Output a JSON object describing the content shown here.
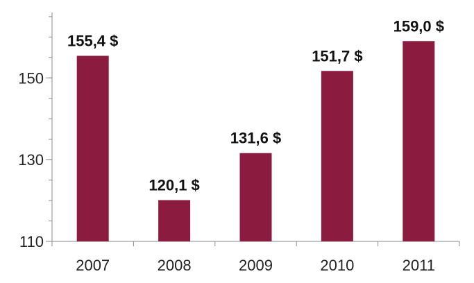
{
  "chart_data": {
    "type": "bar",
    "title": "",
    "xlabel": "",
    "ylabel": "",
    "categories": [
      "2007",
      "2008",
      "2009",
      "2010",
      "2011"
    ],
    "values": [
      155.4,
      120.1,
      131.6,
      151.7,
      159.0
    ],
    "data_labels": [
      "155,4 $",
      "120,1 $",
      "131,6 $",
      "151,7 $",
      "159,0 $"
    ],
    "ylim": [
      110,
      166
    ],
    "y_ticks": [
      110,
      130,
      150
    ],
    "y_tick_labels": [
      "110",
      "130",
      "150"
    ],
    "y_minor_step": 5,
    "grid": false,
    "legend": "none",
    "colors": {
      "bar": "#8b1c40",
      "axis": "#888888"
    }
  }
}
